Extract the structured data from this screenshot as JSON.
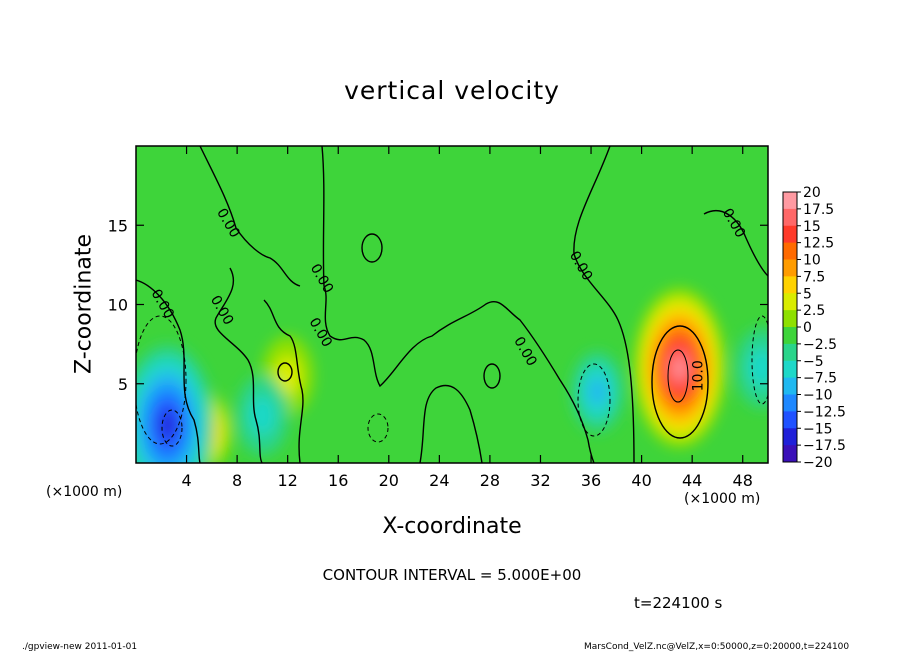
{
  "chart_data": {
    "type": "heatmap",
    "title": "vertical velocity",
    "xlabel": "X-coordinate",
    "ylabel": "Z-coordinate",
    "xunit_left": "(×1000 m)",
    "xunit_right": "(×1000 m)",
    "xlim": [
      0,
      50
    ],
    "ylim": [
      0,
      20
    ],
    "xticks": [
      4,
      8,
      12,
      16,
      20,
      24,
      28,
      32,
      36,
      40,
      44,
      48
    ],
    "yticks": [
      5,
      10,
      15
    ],
    "contour_interval": "CONTOUR INTERVAL = 5.000E+00",
    "contour_labels": [
      {
        "text": "0.00",
        "x": 1.8,
        "z": 9.9
      },
      {
        "text": "0.00",
        "x": 7.0,
        "z": 15.0
      },
      {
        "text": "0.00",
        "x": 6.5,
        "z": 9.5
      },
      {
        "text": "0.00",
        "x": 14.4,
        "z": 11.5
      },
      {
        "text": "0.00",
        "x": 14.3,
        "z": 8.1
      },
      {
        "text": "0.00",
        "x": 30.5,
        "z": 6.9
      },
      {
        "text": "0.00",
        "x": 34.9,
        "z": 12.3
      },
      {
        "text": "0.00",
        "x": 47.0,
        "z": 15.0
      },
      {
        "text": "10.0",
        "x": 44.8,
        "z": 5.5
      }
    ],
    "colorbar": {
      "levels": [
        "20",
        "17.5",
        "15",
        "12.5",
        "10",
        "7.5",
        "5",
        "2.5",
        "0",
        "−2.5",
        "−5",
        "−7.5",
        "−10",
        "−12.5",
        "−15",
        "−17.5",
        "−20"
      ],
      "colors": [
        "#ff9aa2",
        "#ff6868",
        "#ff3a2a",
        "#ff6a00",
        "#ff9c00",
        "#ffd200",
        "#d9ec00",
        "#8ee000",
        "#3ed43a",
        "#2ad48a",
        "#1ed8c8",
        "#20b8f0",
        "#1e88ff",
        "#2052ff",
        "#2020d8",
        "#3a10b8",
        "#6a00b0"
      ]
    },
    "features": [
      {
        "kind": "updraft",
        "x": 43,
        "z": 6,
        "peak": 20
      },
      {
        "kind": "updraft",
        "x": 5.5,
        "z": 2,
        "peak": 9
      },
      {
        "kind": "updraft",
        "x": 12,
        "z": 5.5,
        "peak": 3
      },
      {
        "kind": "downdraft",
        "x": 2.5,
        "z": 2.4,
        "peak": -15
      },
      {
        "kind": "downdraft",
        "x": 36.5,
        "z": 4.5,
        "peak": -8
      },
      {
        "kind": "downdraft",
        "x": 10,
        "z": 3,
        "peak": -4
      },
      {
        "kind": "downdraft",
        "x": 49.5,
        "z": 6,
        "peak": -5
      }
    ]
  },
  "time_label": "t=224100 s",
  "footer": {
    "left": "./gpview-new  2011-01-01",
    "right": "MarsCond_VelZ.nc@VelZ,x=0:50000,z=0:20000,t=224100"
  },
  "colors": {
    "background": "#3ed43a",
    "frame": "#000000"
  }
}
